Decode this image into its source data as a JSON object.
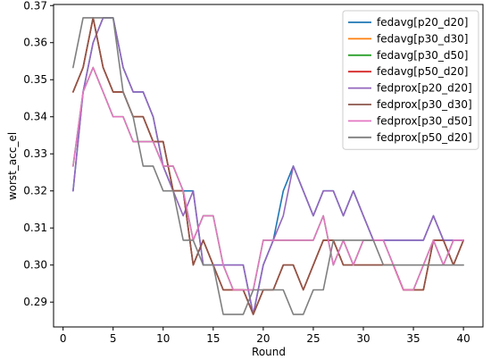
{
  "chart_data": {
    "type": "line",
    "xlabel": "Round",
    "ylabel": "worst_acc_el",
    "xlim": [
      -0.95,
      41.95
    ],
    "ylim": [
      0.2833,
      0.3703
    ],
    "xticks": [
      0,
      5,
      10,
      15,
      20,
      25,
      30,
      35,
      40
    ],
    "yticks": [
      0.29,
      0.3,
      0.31,
      0.32,
      0.33,
      0.34,
      0.35,
      0.36,
      0.37
    ],
    "ytick_labels": [
      "0.29",
      "0.30",
      "0.31",
      "0.32",
      "0.33",
      "0.34",
      "0.35",
      "0.36",
      "0.37"
    ],
    "grid": false,
    "legend_position": "upper right",
    "x": [
      1,
      2,
      3,
      4,
      5,
      6,
      7,
      8,
      9,
      10,
      11,
      12,
      13,
      14,
      15,
      16,
      17,
      18,
      19,
      20,
      21,
      22,
      23,
      24,
      25,
      26,
      27,
      28,
      29,
      30,
      31,
      32,
      33,
      34,
      35,
      36,
      37,
      38,
      39,
      40
    ],
    "series": [
      {
        "name": "fedavg[p20_d20]",
        "color": "#1f77b4",
        "values": [
          0.32,
          0.3467,
          0.36,
          0.3667,
          0.3667,
          0.3533,
          0.3467,
          0.3467,
          0.34,
          0.3267,
          0.32,
          0.32,
          0.32,
          0.3,
          0.3,
          0.3,
          0.3,
          0.3,
          0.2867,
          0.3,
          0.3067,
          0.32,
          0.3267,
          0.32,
          0.3133,
          0.32,
          0.32,
          0.3133,
          0.32,
          0.3133,
          0.3067,
          0.3067,
          0.3067,
          0.3067,
          0.3067,
          0.3067,
          0.3133,
          0.3067,
          0.3067,
          0.3067
        ]
      },
      {
        "name": "fedavg[p30_d30]",
        "color": "#ff7f0e",
        "values": [
          0.3467,
          0.3533,
          0.3667,
          0.3533,
          0.3467,
          0.3467,
          0.34,
          0.34,
          0.3333,
          0.3333,
          0.32,
          0.32,
          0.3,
          0.3067,
          0.3,
          0.2933,
          0.2933,
          0.2933,
          0.2867,
          0.2933,
          0.2933,
          0.3,
          0.3,
          0.2933,
          0.3,
          0.3067,
          0.3067,
          0.3,
          0.3,
          0.3,
          0.3,
          0.3,
          0.3,
          0.2933,
          0.2933,
          0.2933,
          0.3067,
          0.3067,
          0.3,
          0.3067
        ]
      },
      {
        "name": "fedavg[p30_d50]",
        "color": "#2ca02c",
        "values": [
          0.3267,
          0.3467,
          0.3533,
          0.3467,
          0.34,
          0.34,
          0.3333,
          0.3333,
          0.3333,
          0.3267,
          0.3267,
          0.32,
          0.3067,
          0.3133,
          0.3133,
          0.3,
          0.2933,
          0.2933,
          0.2933,
          0.3067,
          0.3067,
          0.3067,
          0.3067,
          0.3067,
          0.3067,
          0.3133,
          0.3,
          0.3067,
          0.3,
          0.3067,
          0.3067,
          0.3067,
          0.3,
          0.2933,
          0.2933,
          0.3,
          0.3067,
          0.3,
          0.3067,
          0.3067
        ]
      },
      {
        "name": "fedavg[p50_d20]",
        "color": "#d62728",
        "values": [
          0.3467,
          0.3533,
          0.3667,
          0.3533,
          0.3467,
          0.3467,
          0.34,
          0.34,
          0.3333,
          0.3333,
          0.32,
          0.32,
          0.3,
          0.3067,
          0.3,
          0.2933,
          0.2933,
          0.2933,
          0.2867,
          0.2933,
          0.2933,
          0.3,
          0.3,
          0.2933,
          0.3,
          0.3067,
          0.3067,
          0.3,
          0.3,
          0.3,
          0.3,
          0.3,
          0.3,
          0.2933,
          0.2933,
          0.2933,
          0.3067,
          0.3067,
          0.3,
          0.3067
        ]
      },
      {
        "name": "fedprox[p20_d20]",
        "color": "#9467bd",
        "values": [
          0.32,
          0.3467,
          0.36,
          0.3667,
          0.3667,
          0.3533,
          0.3467,
          0.3467,
          0.34,
          0.3267,
          0.32,
          0.3133,
          0.32,
          0.3,
          0.3,
          0.3,
          0.3,
          0.3,
          0.2867,
          0.3,
          0.3067,
          0.3133,
          0.3267,
          0.32,
          0.3133,
          0.32,
          0.32,
          0.3133,
          0.32,
          0.3133,
          0.3067,
          0.3067,
          0.3067,
          0.3067,
          0.3067,
          0.3067,
          0.3133,
          0.3067,
          0.3067,
          0.3067
        ]
      },
      {
        "name": "fedprox[p30_d30]",
        "color": "#8c564b",
        "values": [
          0.3467,
          0.3533,
          0.3667,
          0.3533,
          0.3467,
          0.3467,
          0.34,
          0.34,
          0.3333,
          0.3333,
          0.32,
          0.32,
          0.3,
          0.3067,
          0.3,
          0.2933,
          0.2933,
          0.2933,
          0.2867,
          0.2933,
          0.2933,
          0.3,
          0.3,
          0.2933,
          0.3,
          0.3067,
          0.3067,
          0.3,
          0.3,
          0.3,
          0.3,
          0.3,
          0.3,
          0.2933,
          0.2933,
          0.2933,
          0.3067,
          0.3067,
          0.3,
          0.3067
        ]
      },
      {
        "name": "fedprox[p30_d50]",
        "color": "#e377c2",
        "values": [
          0.3267,
          0.3467,
          0.3533,
          0.3467,
          0.34,
          0.34,
          0.3333,
          0.3333,
          0.3333,
          0.3267,
          0.3267,
          0.32,
          0.3067,
          0.3133,
          0.3133,
          0.3,
          0.2933,
          0.2933,
          0.2933,
          0.3067,
          0.3067,
          0.3067,
          0.3067,
          0.3067,
          0.3067,
          0.3133,
          0.3,
          0.3067,
          0.3,
          0.3067,
          0.3067,
          0.3067,
          0.3,
          0.2933,
          0.2933,
          0.3,
          0.3067,
          0.3,
          0.3067,
          0.3067
        ]
      },
      {
        "name": "fedprox[p50_d20]",
        "color": "#7f7f7f",
        "values": [
          0.3533,
          0.3667,
          0.3667,
          0.3667,
          0.3667,
          0.3467,
          0.34,
          0.3267,
          0.3267,
          0.32,
          0.32,
          0.3067,
          0.3067,
          0.3,
          0.3,
          0.2867,
          0.2867,
          0.2867,
          0.2933,
          0.2933,
          0.2933,
          0.2933,
          0.2867,
          0.2867,
          0.2933,
          0.2933,
          0.3067,
          0.3067,
          0.3067,
          0.3067,
          0.3067,
          0.3,
          0.3,
          0.3,
          0.3,
          0.3,
          0.3,
          0.3,
          0.3,
          0.3
        ]
      }
    ]
  }
}
